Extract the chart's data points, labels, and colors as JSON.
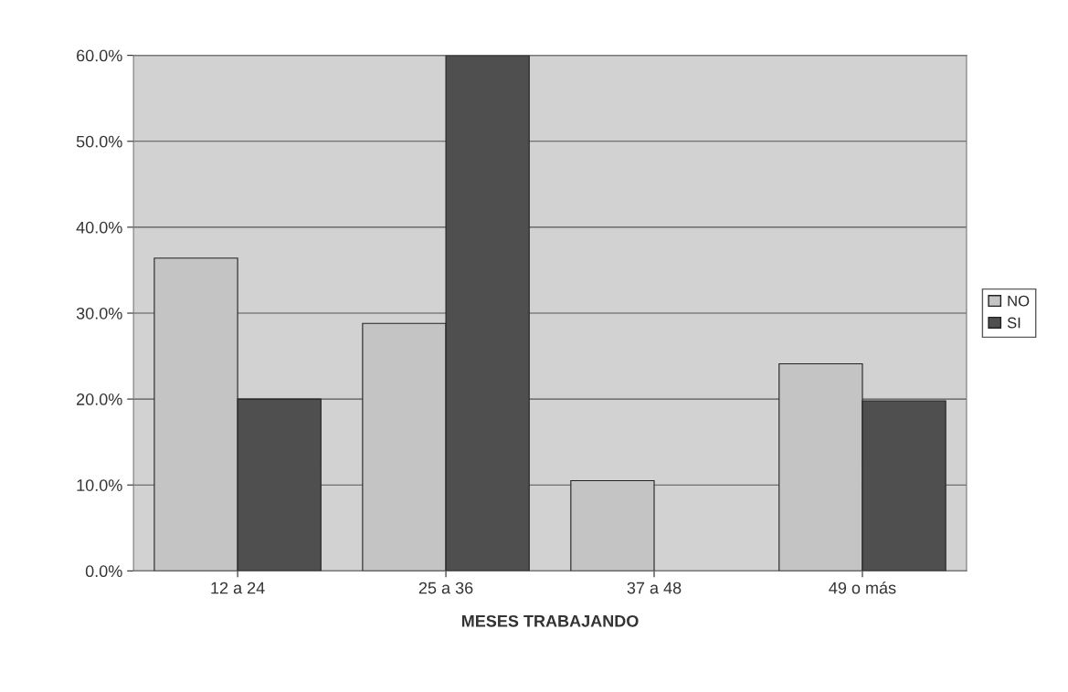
{
  "chart_data": {
    "type": "bar",
    "xlabel": "MESES TRABAJANDO",
    "categories": [
      "12 a 24",
      "25 a 36",
      "37 a 48",
      "49 o más"
    ],
    "series": [
      {
        "name": "NO",
        "color": "#c4c4c4",
        "values": [
          36.4,
          28.8,
          10.5,
          24.1
        ]
      },
      {
        "name": "SI",
        "color": "#4f4f4f",
        "values": [
          20.0,
          60.0,
          null,
          19.8
        ]
      }
    ],
    "ylim": [
      0,
      60
    ],
    "yticks": [
      {
        "value": 0,
        "label": "0.0%"
      },
      {
        "value": 10,
        "label": "10.0%"
      },
      {
        "value": 20,
        "label": "20.0%"
      },
      {
        "value": 30,
        "label": "30.0%"
      },
      {
        "value": 40,
        "label": "40.0%"
      },
      {
        "value": 50,
        "label": "50.0%"
      },
      {
        "value": 60,
        "label": "60.0%"
      }
    ],
    "grid": "y",
    "legend": "right"
  }
}
